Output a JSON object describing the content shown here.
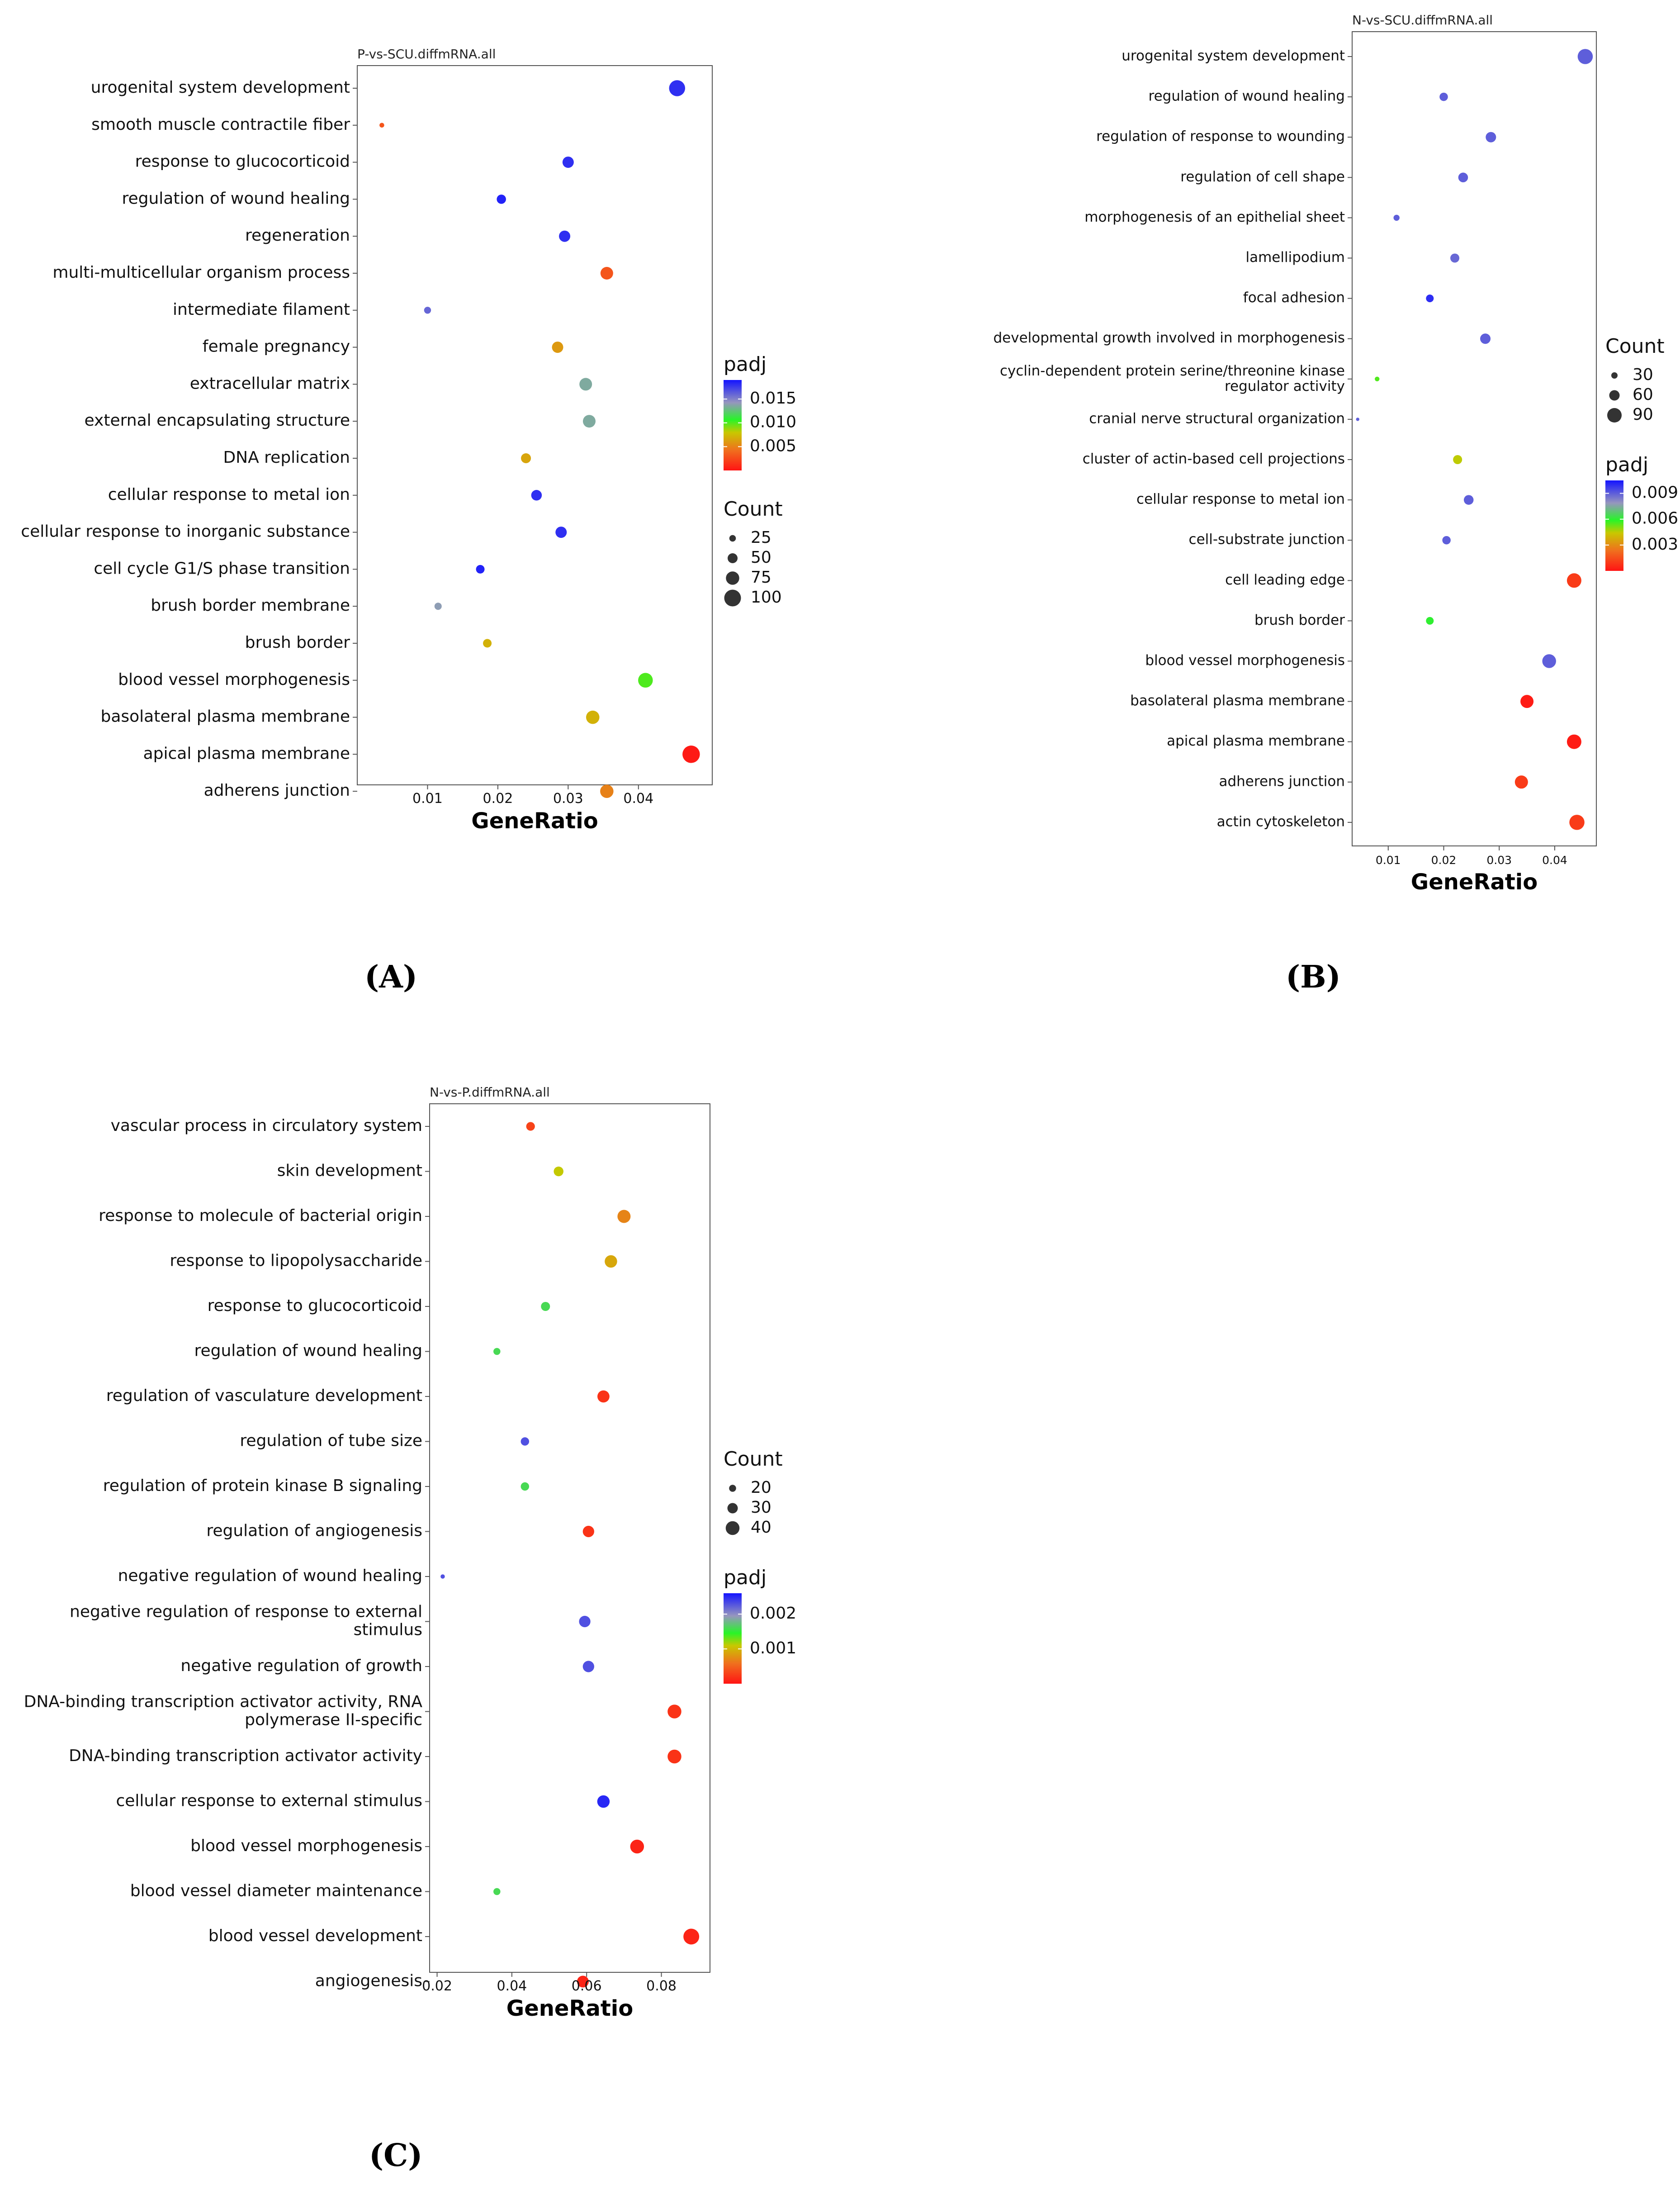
{
  "charts": [
    {
      "chart_data": {
        "type": "scatter",
        "title": "P-vs-SCU.diffmRNA.all",
        "xlabel": "GeneRatio",
        "ylabel": "",
        "xlim": [
          0.0,
          0.0505
        ],
        "xticks": [
          "0.01",
          "0.02",
          "0.03",
          "0.04"
        ],
        "xtick_values": [
          0.01,
          0.02,
          0.03,
          0.04
        ],
        "padj_range": [
          0.0,
          0.019
        ],
        "count_range": [
          10,
          110
        ],
        "legend_order": [
          "padj",
          "count"
        ],
        "padj_legend": {
          "title": "padj",
          "ticks": [
            "0.015",
            "0.010",
            "0.005"
          ],
          "tick_values": [
            0.015,
            0.01,
            0.005
          ]
        },
        "count_legend": {
          "title": "Count",
          "labels": [
            "25",
            "50",
            "75",
            "100"
          ],
          "values": [
            25,
            50,
            75,
            100
          ]
        },
        "points": [
          {
            "term": "urogenital system development",
            "x": 0.0455,
            "count": 95,
            "padj": 0.018
          },
          {
            "term": "smooth muscle contractile fiber",
            "x": 0.0035,
            "count": 12,
            "padj": 0.003
          },
          {
            "term": "response to glucocorticoid",
            "x": 0.03,
            "count": 60,
            "padj": 0.018
          },
          {
            "term": "regulation of wound healing",
            "x": 0.0205,
            "count": 45,
            "padj": 0.0185
          },
          {
            "term": "regeneration",
            "x": 0.0295,
            "count": 60,
            "padj": 0.018
          },
          {
            "term": "multi-multicellular organism process",
            "x": 0.0355,
            "count": 70,
            "padj": 0.003
          },
          {
            "term": "intermediate filament",
            "x": 0.01,
            "count": 28,
            "padj": 0.016
          },
          {
            "term": "female pregnancy",
            "x": 0.0285,
            "count": 60,
            "padj": 0.006
          },
          {
            "term": "extracellular matrix",
            "x": 0.0325,
            "count": 70,
            "padj": 0.0135
          },
          {
            "term": "external encapsulating structure",
            "x": 0.033,
            "count": 70,
            "padj": 0.0135
          },
          {
            "term": "DNA replication",
            "x": 0.024,
            "count": 50,
            "padj": 0.0065
          },
          {
            "term": "cellular response to metal ion",
            "x": 0.0255,
            "count": 55,
            "padj": 0.018
          },
          {
            "term": "cellular response to inorganic substance",
            "x": 0.029,
            "count": 60,
            "padj": 0.018
          },
          {
            "term": "cell cycle G1/S phase transition",
            "x": 0.0175,
            "count": 40,
            "padj": 0.0185
          },
          {
            "term": "brush border membrane",
            "x": 0.0115,
            "count": 30,
            "padj": 0.014
          },
          {
            "term": "brush border",
            "x": 0.0185,
            "count": 40,
            "padj": 0.007
          },
          {
            "term": "blood vessel morphogenesis",
            "x": 0.041,
            "count": 85,
            "padj": 0.01
          },
          {
            "term": "basolateral plasma membrane",
            "x": 0.0335,
            "count": 75,
            "padj": 0.007
          },
          {
            "term": "apical plasma membrane",
            "x": 0.0475,
            "count": 105,
            "padj": 0.0003
          },
          {
            "term": "adherens junction",
            "x": 0.0355,
            "count": 75,
            "padj": 0.005
          }
        ]
      }
    },
    {
      "chart_data": {
        "type": "scatter",
        "title": "N-vs-SCU.diffmRNA.all",
        "xlabel": "GeneRatio",
        "ylabel": "",
        "xlim": [
          0.0035,
          0.0475
        ],
        "xticks": [
          "0.01",
          "0.02",
          "0.03",
          "0.04"
        ],
        "xtick_values": [
          0.01,
          0.02,
          0.03,
          0.04
        ],
        "padj_range": [
          0.0,
          0.0105
        ],
        "count_range": [
          10,
          110
        ],
        "legend_order": [
          "count",
          "padj"
        ],
        "padj_legend": {
          "title": "padj",
          "ticks": [
            "0.009",
            "0.006",
            "0.003"
          ],
          "tick_values": [
            0.009,
            0.006,
            0.003
          ]
        },
        "count_legend": {
          "title": "Count",
          "labels": [
            "30",
            "60",
            "90"
          ],
          "values": [
            30,
            60,
            90
          ]
        },
        "points": [
          {
            "term": "urogenital system development",
            "x": 0.0455,
            "count": 95,
            "padj": 0.009
          },
          {
            "term": "regulation of wound healing",
            "x": 0.02,
            "count": 45,
            "padj": 0.009
          },
          {
            "term": "regulation of response to wounding",
            "x": 0.0285,
            "count": 60,
            "padj": 0.009
          },
          {
            "term": "regulation of cell shape",
            "x": 0.0235,
            "count": 55,
            "padj": 0.009
          },
          {
            "term": "morphogenesis of an epithelial sheet",
            "x": 0.0115,
            "count": 28,
            "padj": 0.009
          },
          {
            "term": "lamellipodium",
            "x": 0.022,
            "count": 50,
            "padj": 0.0088
          },
          {
            "term": "focal adhesion",
            "x": 0.0175,
            "count": 40,
            "padj": 0.01
          },
          {
            "term": "developmental growth involved in morphogenesis",
            "x": 0.0275,
            "count": 60,
            "padj": 0.009
          },
          {
            "term": "cyclin-dependent protein serine/threonine kinase regulator activity",
            "x": 0.008,
            "count": 18,
            "padj": 0.0055
          },
          {
            "term": "cranial nerve structural organization",
            "x": 0.0045,
            "count": 8,
            "padj": 0.009
          },
          {
            "term": "cluster of actin-based cell projections",
            "x": 0.0225,
            "count": 50,
            "padj": 0.0045
          },
          {
            "term": "cellular response to metal ion",
            "x": 0.0245,
            "count": 55,
            "padj": 0.009
          },
          {
            "term": "cell-substrate junction",
            "x": 0.0205,
            "count": 45,
            "padj": 0.009
          },
          {
            "term": "cell leading edge",
            "x": 0.0435,
            "count": 90,
            "padj": 0.001
          },
          {
            "term": "brush border",
            "x": 0.0175,
            "count": 40,
            "padj": 0.006
          },
          {
            "term": "blood vessel morphogenesis",
            "x": 0.039,
            "count": 85,
            "padj": 0.009
          },
          {
            "term": "basolateral plasma membrane",
            "x": 0.035,
            "count": 80,
            "padj": 0.0002
          },
          {
            "term": "apical plasma membrane",
            "x": 0.0435,
            "count": 90,
            "padj": 0.0002
          },
          {
            "term": "adherens junction",
            "x": 0.034,
            "count": 80,
            "padj": 0.001
          },
          {
            "term": "actin cytoskeleton",
            "x": 0.044,
            "count": 95,
            "padj": 0.001
          }
        ]
      }
    },
    {
      "chart_data": {
        "type": "scatter",
        "title": "N-vs-P.diffmRNA.all",
        "xlabel": "GeneRatio",
        "ylabel": "",
        "xlim": [
          0.018,
          0.093
        ],
        "xticks": [
          "0.02",
          "0.04",
          "0.06",
          "0.08"
        ],
        "xtick_values": [
          0.02,
          0.04,
          0.06,
          0.08
        ],
        "padj_range": [
          0.0,
          0.0026
        ],
        "count_range": [
          10,
          50
        ],
        "legend_order": [
          "count",
          "padj"
        ],
        "padj_legend": {
          "title": "padj",
          "ticks": [
            "0.002",
            "0.001"
          ],
          "tick_values": [
            0.002,
            0.001
          ]
        },
        "count_legend": {
          "title": "Count",
          "labels": [
            "20",
            "30",
            "40"
          ],
          "values": [
            20,
            30,
            40
          ]
        },
        "points": [
          {
            "term": "vascular process in circulatory system",
            "x": 0.045,
            "count": 25,
            "padj": 0.0003
          },
          {
            "term": "skin development",
            "x": 0.0525,
            "count": 28,
            "padj": 0.0011
          },
          {
            "term": "response to molecule of bacterial origin",
            "x": 0.07,
            "count": 38,
            "padj": 0.0007
          },
          {
            "term": "response to lipopolysaccharide",
            "x": 0.0665,
            "count": 36,
            "padj": 0.0009
          },
          {
            "term": "response to glucocorticoid",
            "x": 0.049,
            "count": 26,
            "padj": 0.0016
          },
          {
            "term": "regulation of wound healing",
            "x": 0.036,
            "count": 20,
            "padj": 0.0016
          },
          {
            "term": "regulation of vasculature development",
            "x": 0.0645,
            "count": 35,
            "padj": 0.0002
          },
          {
            "term": "regulation of tube size",
            "x": 0.0435,
            "count": 24,
            "padj": 0.0023
          },
          {
            "term": "regulation of protein kinase B signaling",
            "x": 0.0435,
            "count": 24,
            "padj": 0.0016
          },
          {
            "term": "regulation of angiogenesis",
            "x": 0.0605,
            "count": 33,
            "padj": 0.0002
          },
          {
            "term": "negative regulation of wound healing",
            "x": 0.0215,
            "count": 12,
            "padj": 0.0023
          },
          {
            "term": "negative regulation of response to external stimulus",
            "x": 0.0595,
            "count": 33,
            "padj": 0.0023
          },
          {
            "term": "negative regulation of growth",
            "x": 0.0605,
            "count": 33,
            "padj": 0.0023
          },
          {
            "term": "DNA-binding transcription activator activity, RNA polymerase II-specific",
            "x": 0.0835,
            "count": 40,
            "padj": 0.0002
          },
          {
            "term": "DNA-binding transcription activator activity",
            "x": 0.0835,
            "count": 40,
            "padj": 0.0002
          },
          {
            "term": "cellular response to external stimulus",
            "x": 0.0645,
            "count": 36,
            "padj": 0.0025
          },
          {
            "term": "blood vessel morphogenesis",
            "x": 0.0735,
            "count": 40,
            "padj": 0.0001
          },
          {
            "term": "blood vessel diameter maintenance",
            "x": 0.036,
            "count": 20,
            "padj": 0.0016
          },
          {
            "term": "blood vessel development",
            "x": 0.088,
            "count": 46,
            "padj": 0.0001
          },
          {
            "term": "angiogenesis",
            "x": 0.059,
            "count": 34,
            "padj": 0.0001
          }
        ]
      }
    }
  ],
  "captions": [
    "(A)",
    "(B)",
    "(C)"
  ]
}
